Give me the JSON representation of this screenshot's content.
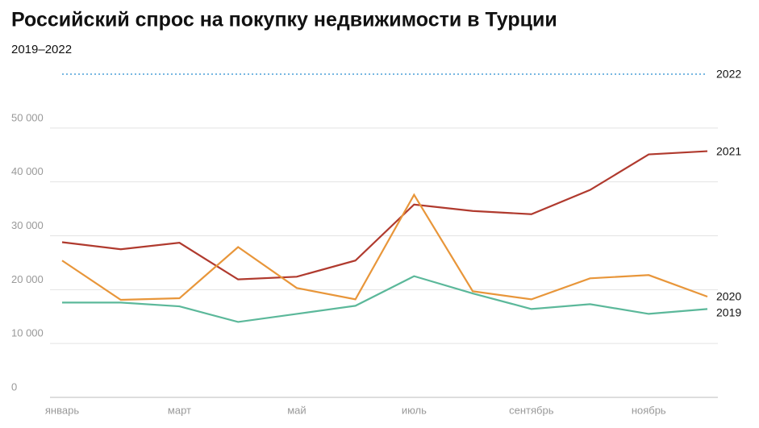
{
  "chart_data": {
    "type": "line",
    "title": "Российский спрос на покупку недвижимости в Турции",
    "subtitle": "2019–2022",
    "categories": [
      "январь",
      null,
      "март",
      null,
      "май",
      null,
      "июль",
      null,
      "сентябрь",
      null,
      "ноябрь",
      null
    ],
    "series": [
      {
        "name": "2022",
        "color": "#4a9fd8",
        "dashed": true,
        "values": [
          60000,
          60000,
          60000,
          60000,
          60000,
          60000,
          60000,
          60000,
          60000,
          60000,
          60000,
          60000
        ]
      },
      {
        "name": "2021",
        "color": "#b03a2e",
        "values": [
          28800,
          27500,
          28700,
          21900,
          22400,
          25400,
          35800,
          34600,
          34000,
          38500,
          45100,
          45700
        ]
      },
      {
        "name": "2020",
        "color": "#e8963a",
        "values": [
          25400,
          18100,
          18400,
          27900,
          20300,
          18200,
          37600,
          19700,
          18200,
          22100,
          22700,
          18700
        ]
      },
      {
        "name": "2019",
        "color": "#5bb89a",
        "values": [
          17600,
          17600,
          16900,
          14000,
          15500,
          17000,
          22500,
          19300,
          16400,
          17300,
          15500,
          16400
        ]
      }
    ],
    "ylim": [
      0,
      60000
    ],
    "yticks": [
      0,
      {
        "value": 10000,
        "label": "10 000"
      },
      {
        "value": 20000,
        "label": "20 000"
      },
      {
        "value": 30000,
        "label": "30 000"
      },
      {
        "value": 40000,
        "label": "40 000"
      },
      {
        "value": 50000,
        "label": "50 000"
      }
    ],
    "grid": true
  }
}
